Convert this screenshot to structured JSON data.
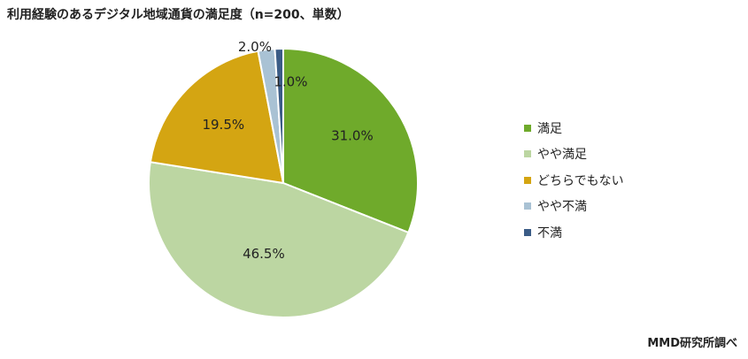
{
  "chart_data": {
    "type": "pie",
    "title": "利用経験のあるデジタル地域通貨の満足度（n=200、単数）",
    "categories": [
      "満足",
      "やや満足",
      "どちらでもない",
      "やや不満",
      "不満"
    ],
    "values": [
      31.0,
      46.5,
      19.5,
      2.0,
      1.0
    ],
    "value_labels": [
      "31.0%",
      "46.5%",
      "19.5%",
      "2.0%",
      "1.0%"
    ],
    "colors": [
      "#6faa2b",
      "#bcd6a2",
      "#d4a512",
      "#a9c2d4",
      "#3b5c86"
    ],
    "start_angle_deg": 0,
    "direction": "clockwise",
    "legend_position": "right"
  },
  "source_note": "MMD研究所調べ"
}
